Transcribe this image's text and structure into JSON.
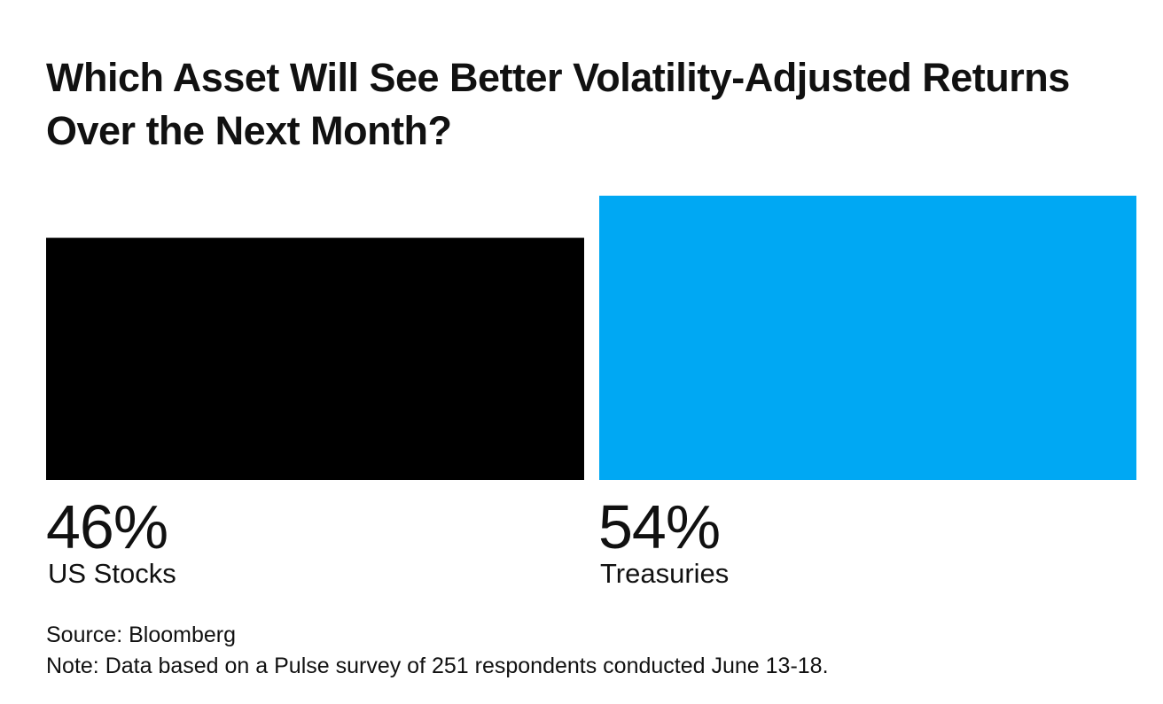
{
  "chart_data": {
    "type": "bar",
    "title": "Which Asset Will See Better Volatility-Adjusted Returns Over the Next Month?",
    "categories": [
      "US Stocks",
      "Treasuries"
    ],
    "values": [
      46,
      54
    ],
    "value_labels": [
      "46%",
      "54%"
    ],
    "colors": [
      "#000000",
      "#00a8f3"
    ],
    "ylim": [
      0,
      54
    ]
  },
  "footer": {
    "source": "Source: Bloomberg",
    "note": "Note: Data based on a Pulse survey of 251 respondents conducted June 13-18."
  }
}
